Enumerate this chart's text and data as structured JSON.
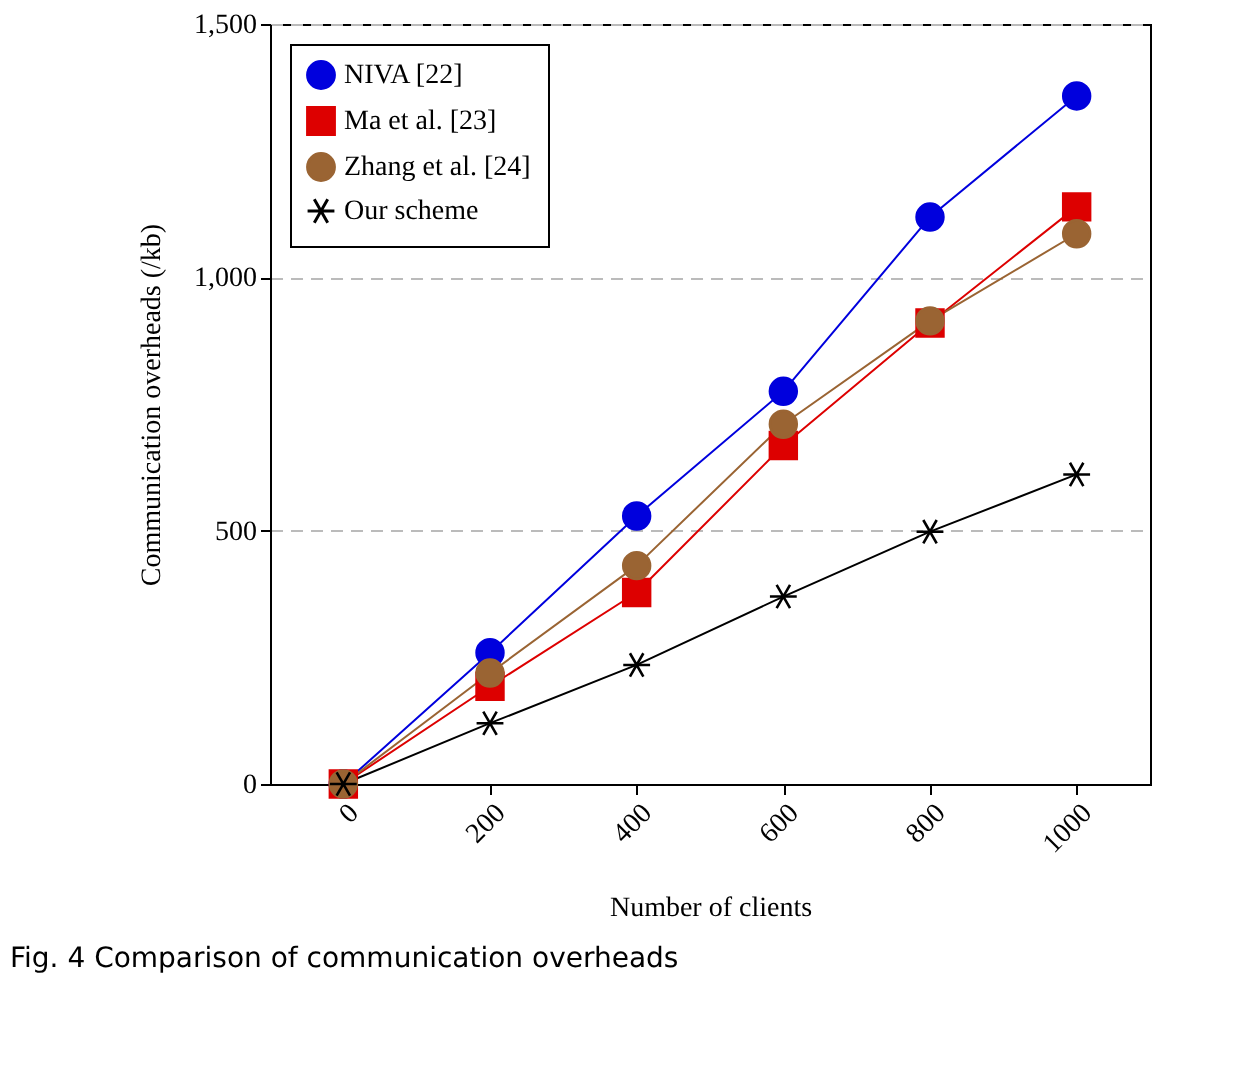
{
  "chart_data": {
    "type": "line",
    "xlabel": "Number of clients",
    "ylabel": "Communication overheads (/kb)",
    "annotations": [
      "Fig. 4  Comparison of communication overheads"
    ],
    "x": [
      0,
      200,
      400,
      600,
      800,
      1000
    ],
    "xlim": [
      -100,
      1100
    ],
    "xticks": [
      0,
      200,
      400,
      600,
      800,
      1000
    ],
    "ylim": [
      0,
      1500
    ],
    "yticks": [
      {
        "value": 0,
        "label": "0"
      },
      {
        "value": 500,
        "label": "500"
      },
      {
        "value": 1000,
        "label": "1,000"
      },
      {
        "value": 1500,
        "label": "1,500"
      }
    ],
    "grid": "y",
    "legend": "top left",
    "series": [
      {
        "name": "NIVA [22]",
        "color": "#0000dd",
        "marker": "circle",
        "values": [
          0,
          259,
          529,
          775,
          1119,
          1358
        ]
      },
      {
        "name": "Ma et al. [23]",
        "color": "#dd0000",
        "marker": "square",
        "values": [
          0,
          193,
          378,
          668,
          910,
          1139
        ]
      },
      {
        "name": "Zhang et al. [24]",
        "color": "#9a6433",
        "marker": "circle",
        "values": [
          0,
          219,
          431,
          710,
          914,
          1086
        ]
      },
      {
        "name": "Our scheme",
        "color": "#000000",
        "marker": "cross",
        "values": [
          0,
          120,
          235,
          370,
          498,
          611
        ]
      }
    ]
  }
}
